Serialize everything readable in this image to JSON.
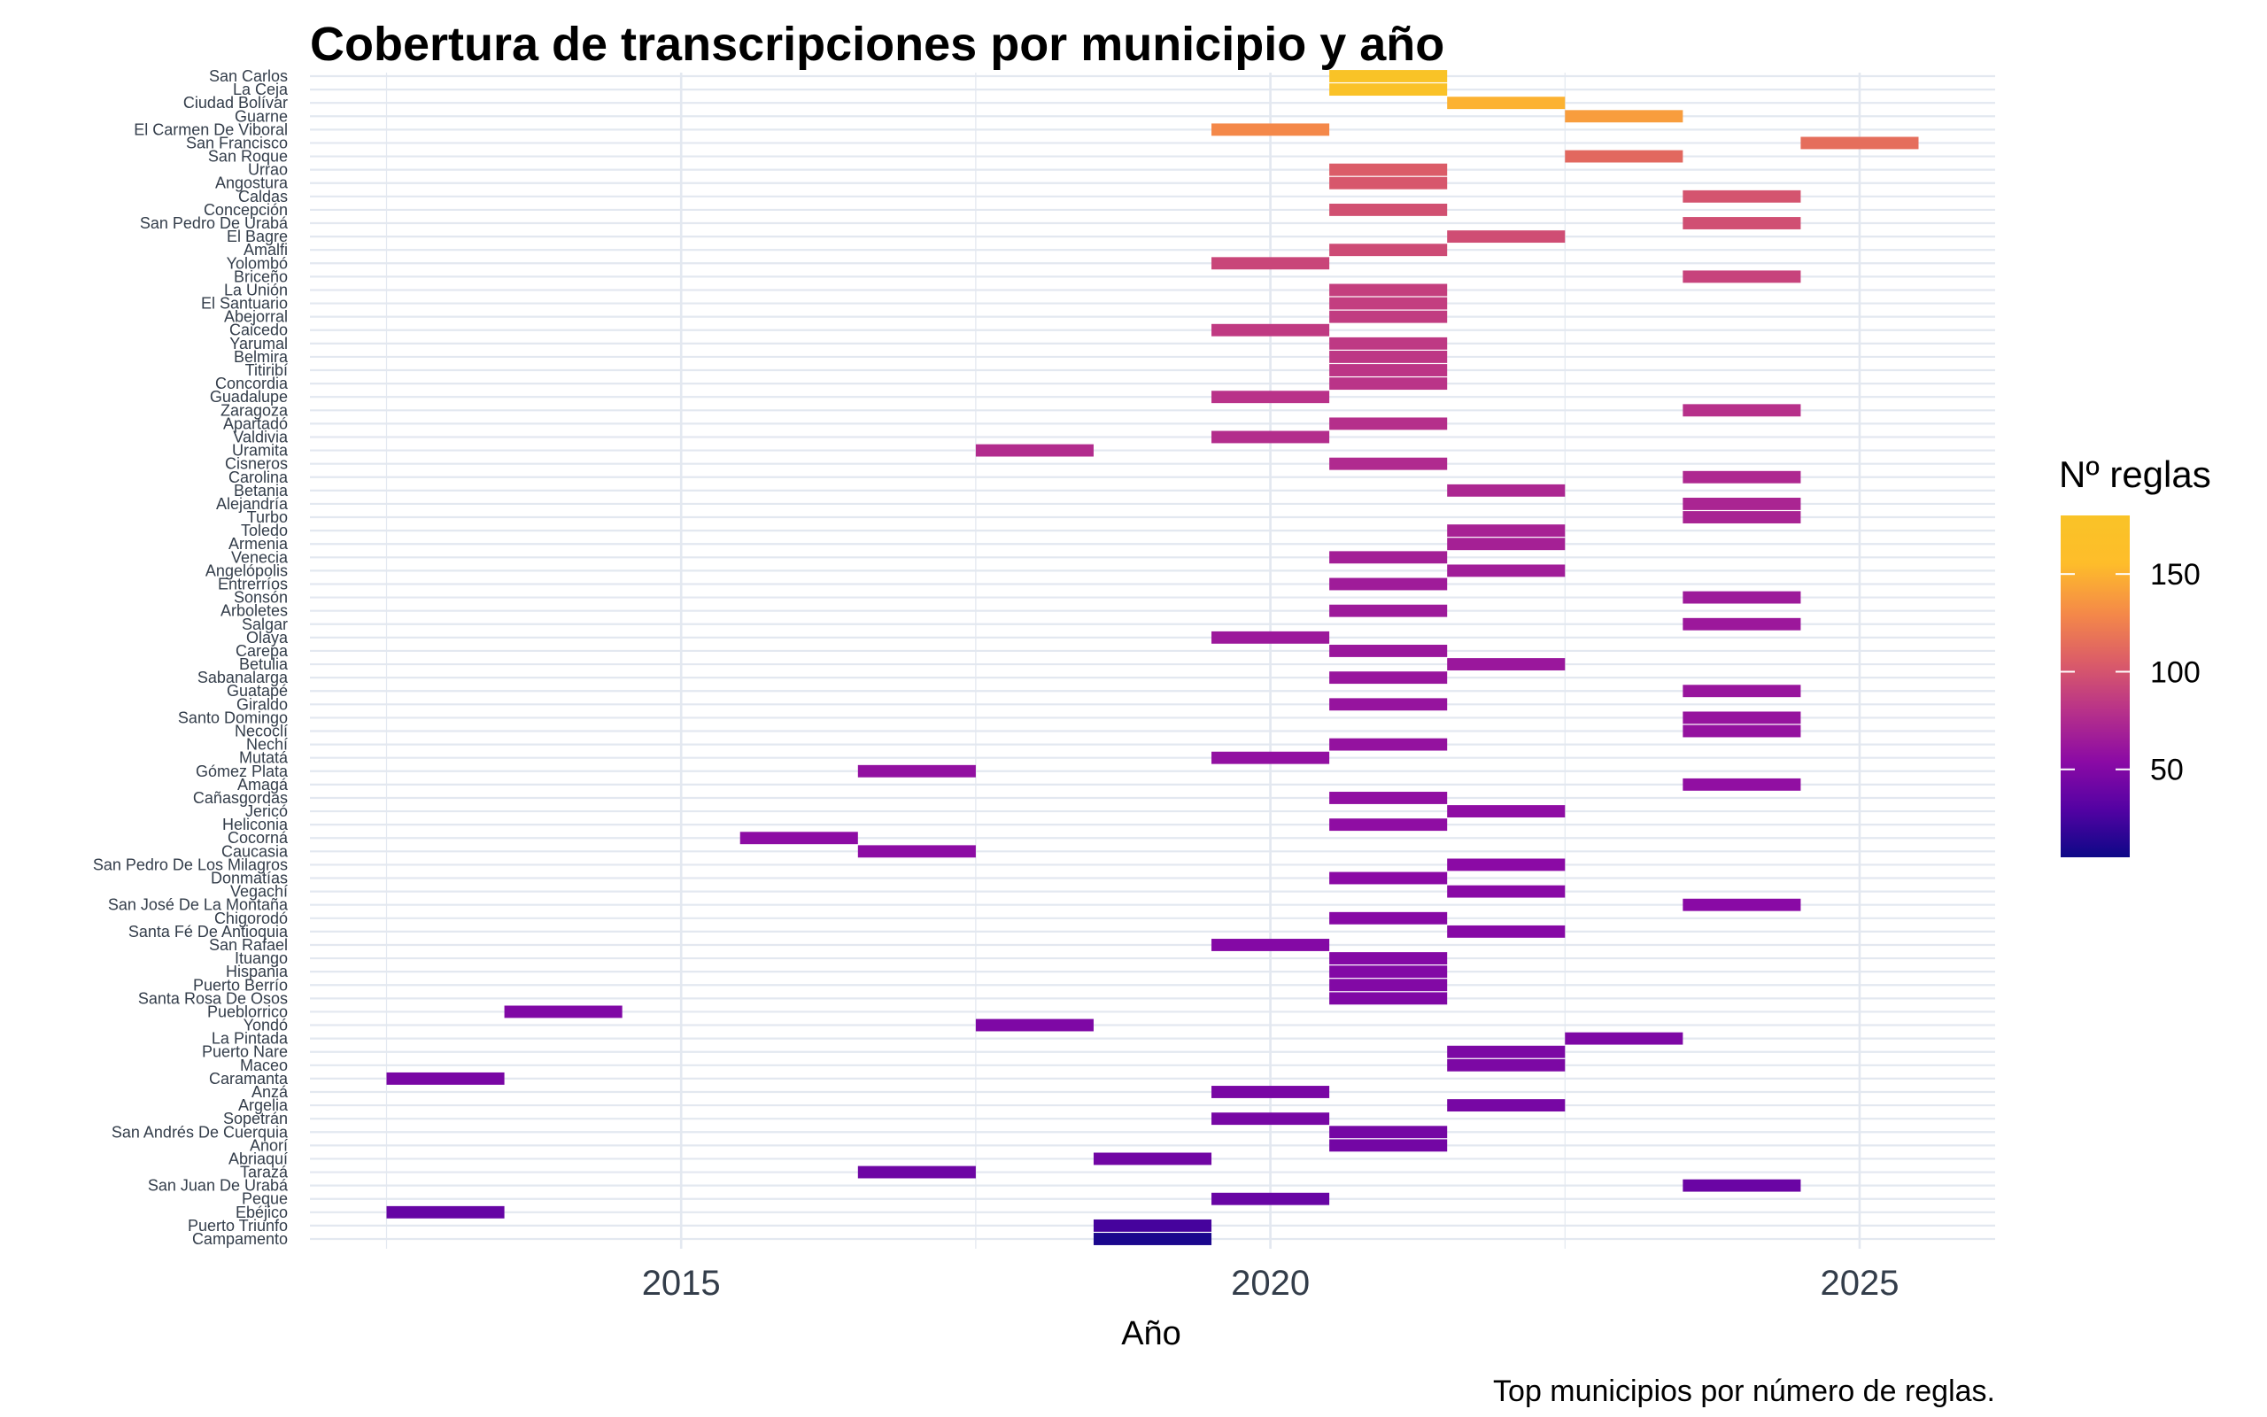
{
  "chart_data": {
    "type": "bar",
    "title": "Cobertura de transcripciones por municipio y año",
    "xlabel": "Año",
    "caption": "Top municipios por número de reglas.",
    "xlim": [
      2011.85,
      2026.15
    ],
    "x_ticks": [
      2015,
      2020,
      2025
    ],
    "x_tick_labels": [
      "2015",
      "2020",
      "2025"
    ],
    "grid": "on",
    "legend": {
      "title": "Nº reglas",
      "position": "right",
      "range": [
        5,
        180
      ],
      "ticks": [
        50,
        100,
        150
      ],
      "tick_labels": [
        "50",
        "100",
        "150"
      ],
      "colormap": "plasma"
    },
    "colors": {
      "grid": "#e3e8f0",
      "low": "#0d0887",
      "high": "#f9c327"
    },
    "municipalities": [
      "San Carlos",
      "La Ceja",
      "Ciudad Bolívar",
      "Guarne",
      "El Carmen De Viboral",
      "San Francisco",
      "San Roque",
      "Urrao",
      "Angostura",
      "Caldas",
      "Concepción",
      "San Pedro De Urabá",
      "El Bagre",
      "Amalfi",
      "Yolombó",
      "Briceño",
      "La Unión",
      "El Santuario",
      "Abejorral",
      "Caicedo",
      "Yarumal",
      "Belmira",
      "Titiribí",
      "Concordia",
      "Guadalupe",
      "Zaragoza",
      "Apartadó",
      "Valdivia",
      "Uramita",
      "Cisneros",
      "Carolina",
      "Betania",
      "Alejandría",
      "Turbo",
      "Toledo",
      "Armenia",
      "Venecia",
      "Angelópolis",
      "Entrerríos",
      "Sonsón",
      "Arboletes",
      "Salgar",
      "Olaya",
      "Carepa",
      "Betulia",
      "Sabanalarga",
      "Guatapé",
      "Giraldo",
      "Santo Domingo",
      "Necoclí",
      "Nechí",
      "Mutatá",
      "Gómez Plata",
      "Amagá",
      "Cañasgordas",
      "Jericó",
      "Heliconia",
      "Cocorná",
      "Caucasia",
      "San Pedro De Los Milagros",
      "Donmatías",
      "Vegachí",
      "San José De La Montaña",
      "Chigorodó",
      "Santa Fé De Antioquia",
      "San Rafael",
      "Ituango",
      "Hispania",
      "Puerto Berrío",
      "Santa Rosa De Osos",
      "Pueblorrico",
      "Yondó",
      "La Pintada",
      "Puerto Nare",
      "Maceo",
      "Caramanta",
      "Anzá",
      "Argelia",
      "Sopetrán",
      "San Andrés De Cuerquia",
      "Anorí",
      "Abriaquí",
      "Tarazá",
      "San Juan De Urabá",
      "Peque",
      "Ebéjico",
      "Puerto Triunfo",
      "Campamento"
    ],
    "bars": [
      {
        "municipio": "San Carlos",
        "year": 2021,
        "reglas": 180
      },
      {
        "municipio": "La Ceja",
        "year": 2021,
        "reglas": 175
      },
      {
        "municipio": "Ciudad Bolívar",
        "year": 2022,
        "reglas": 150
      },
      {
        "municipio": "Guarne",
        "year": 2023,
        "reglas": 140
      },
      {
        "municipio": "El Carmen De Viboral",
        "year": 2020,
        "reglas": 130
      },
      {
        "municipio": "San Francisco",
        "year": 2025,
        "reglas": 115
      },
      {
        "municipio": "San Roque",
        "year": 2023,
        "reglas": 112
      },
      {
        "municipio": "Urrao",
        "year": 2021,
        "reglas": 105
      },
      {
        "municipio": "Angostura",
        "year": 2021,
        "reglas": 102
      },
      {
        "municipio": "Caldas",
        "year": 2024,
        "reglas": 100
      },
      {
        "municipio": "Concepción",
        "year": 2021,
        "reglas": 98
      },
      {
        "municipio": "San Pedro De Urabá",
        "year": 2024,
        "reglas": 97
      },
      {
        "municipio": "El Bagre",
        "year": 2022,
        "reglas": 96
      },
      {
        "municipio": "Amalfi",
        "year": 2021,
        "reglas": 95
      },
      {
        "municipio": "Yolombó",
        "year": 2020,
        "reglas": 92
      },
      {
        "municipio": "Briceño",
        "year": 2024,
        "reglas": 90
      },
      {
        "municipio": "La Unión",
        "year": 2021,
        "reglas": 88
      },
      {
        "municipio": "El Santuario",
        "year": 2021,
        "reglas": 87
      },
      {
        "municipio": "Abejorral",
        "year": 2021,
        "reglas": 86
      },
      {
        "municipio": "Caicedo",
        "year": 2020,
        "reglas": 85
      },
      {
        "municipio": "Yarumal",
        "year": 2021,
        "reglas": 84
      },
      {
        "municipio": "Belmira",
        "year": 2021,
        "reglas": 83
      },
      {
        "municipio": "Titiribí",
        "year": 2021,
        "reglas": 82
      },
      {
        "municipio": "Concordia",
        "year": 2021,
        "reglas": 81
      },
      {
        "municipio": "Guadalupe",
        "year": 2020,
        "reglas": 80
      },
      {
        "municipio": "Zaragoza",
        "year": 2024,
        "reglas": 79
      },
      {
        "municipio": "Apartadó",
        "year": 2021,
        "reglas": 78
      },
      {
        "municipio": "Valdivia",
        "year": 2020,
        "reglas": 77
      },
      {
        "municipio": "Uramita",
        "year": 2018,
        "reglas": 76
      },
      {
        "municipio": "Cisneros",
        "year": 2021,
        "reglas": 75
      },
      {
        "municipio": "Carolina",
        "year": 2024,
        "reglas": 74
      },
      {
        "municipio": "Betania",
        "year": 2022,
        "reglas": 73
      },
      {
        "municipio": "Alejandría",
        "year": 2024,
        "reglas": 72
      },
      {
        "municipio": "Turbo",
        "year": 2024,
        "reglas": 71
      },
      {
        "municipio": "Toledo",
        "year": 2022,
        "reglas": 70
      },
      {
        "municipio": "Armenia",
        "year": 2022,
        "reglas": 69
      },
      {
        "municipio": "Venecia",
        "year": 2021,
        "reglas": 68
      },
      {
        "municipio": "Angelópolis",
        "year": 2022,
        "reglas": 67
      },
      {
        "municipio": "Entrerríos",
        "year": 2021,
        "reglas": 66
      },
      {
        "municipio": "Sonsón",
        "year": 2024,
        "reglas": 65
      },
      {
        "municipio": "Arboletes",
        "year": 2021,
        "reglas": 65
      },
      {
        "municipio": "Salgar",
        "year": 2024,
        "reglas": 64
      },
      {
        "municipio": "Olaya",
        "year": 2020,
        "reglas": 64
      },
      {
        "municipio": "Carepa",
        "year": 2021,
        "reglas": 63
      },
      {
        "municipio": "Betulia",
        "year": 2022,
        "reglas": 63
      },
      {
        "municipio": "Sabanalarga",
        "year": 2021,
        "reglas": 62
      },
      {
        "municipio": "Guatapé",
        "year": 2024,
        "reglas": 62
      },
      {
        "municipio": "Giraldo",
        "year": 2021,
        "reglas": 61
      },
      {
        "municipio": "Santo Domingo",
        "year": 2024,
        "reglas": 61
      },
      {
        "municipio": "Necoclí",
        "year": 2024,
        "reglas": 60
      },
      {
        "municipio": "Nechí",
        "year": 2021,
        "reglas": 60
      },
      {
        "municipio": "Mutatá",
        "year": 2020,
        "reglas": 59
      },
      {
        "municipio": "Gómez Plata",
        "year": 2017,
        "reglas": 59
      },
      {
        "municipio": "Amagá",
        "year": 2024,
        "reglas": 58
      },
      {
        "municipio": "Cañasgordas",
        "year": 2021,
        "reglas": 58
      },
      {
        "municipio": "Jericó",
        "year": 2022,
        "reglas": 57
      },
      {
        "municipio": "Heliconia",
        "year": 2021,
        "reglas": 57
      },
      {
        "municipio": "Cocorná",
        "year": 2016,
        "reglas": 56
      },
      {
        "municipio": "Caucasia",
        "year": 2017,
        "reglas": 56
      },
      {
        "municipio": "San Pedro De Los Milagros",
        "year": 2022,
        "reglas": 55
      },
      {
        "municipio": "Donmatías",
        "year": 2021,
        "reglas": 55
      },
      {
        "municipio": "Vegachí",
        "year": 2022,
        "reglas": 54
      },
      {
        "municipio": "San José De La Montaña",
        "year": 2024,
        "reglas": 54
      },
      {
        "municipio": "Chigorodó",
        "year": 2021,
        "reglas": 53
      },
      {
        "municipio": "Santa Fé De Antioquia",
        "year": 2022,
        "reglas": 53
      },
      {
        "municipio": "San Rafael",
        "year": 2020,
        "reglas": 52
      },
      {
        "municipio": "Ituango",
        "year": 2021,
        "reglas": 52
      },
      {
        "municipio": "Hispania",
        "year": 2021,
        "reglas": 51
      },
      {
        "municipio": "Puerto Berrío",
        "year": 2021,
        "reglas": 51
      },
      {
        "municipio": "Santa Rosa De Osos",
        "year": 2021,
        "reglas": 50
      },
      {
        "municipio": "Pueblorrico",
        "year": 2014,
        "reglas": 50
      },
      {
        "municipio": "Yondó",
        "year": 2018,
        "reglas": 49
      },
      {
        "municipio": "La Pintada",
        "year": 2023,
        "reglas": 49
      },
      {
        "municipio": "Puerto Nare",
        "year": 2022,
        "reglas": 48
      },
      {
        "municipio": "Maceo",
        "year": 2022,
        "reglas": 48
      },
      {
        "municipio": "Caramanta",
        "year": 2013,
        "reglas": 47
      },
      {
        "municipio": "Anzá",
        "year": 2020,
        "reglas": 47
      },
      {
        "municipio": "Argelia",
        "year": 2022,
        "reglas": 46
      },
      {
        "municipio": "Sopetrán",
        "year": 2020,
        "reglas": 46
      },
      {
        "municipio": "San Andrés De Cuerquia",
        "year": 2021,
        "reglas": 45
      },
      {
        "municipio": "Anorí",
        "year": 2021,
        "reglas": 44
      },
      {
        "municipio": "Abriaquí",
        "year": 2019,
        "reglas": 43
      },
      {
        "municipio": "Tarazá",
        "year": 2017,
        "reglas": 42
      },
      {
        "municipio": "San Juan De Urabá",
        "year": 2024,
        "reglas": 40
      },
      {
        "municipio": "Peque",
        "year": 2020,
        "reglas": 39
      },
      {
        "municipio": "Ebéjico",
        "year": 2013,
        "reglas": 38
      },
      {
        "municipio": "Puerto Triunfo",
        "year": 2019,
        "reglas": 25
      },
      {
        "municipio": "Campamento",
        "year": 2019,
        "reglas": 10
      }
    ]
  }
}
